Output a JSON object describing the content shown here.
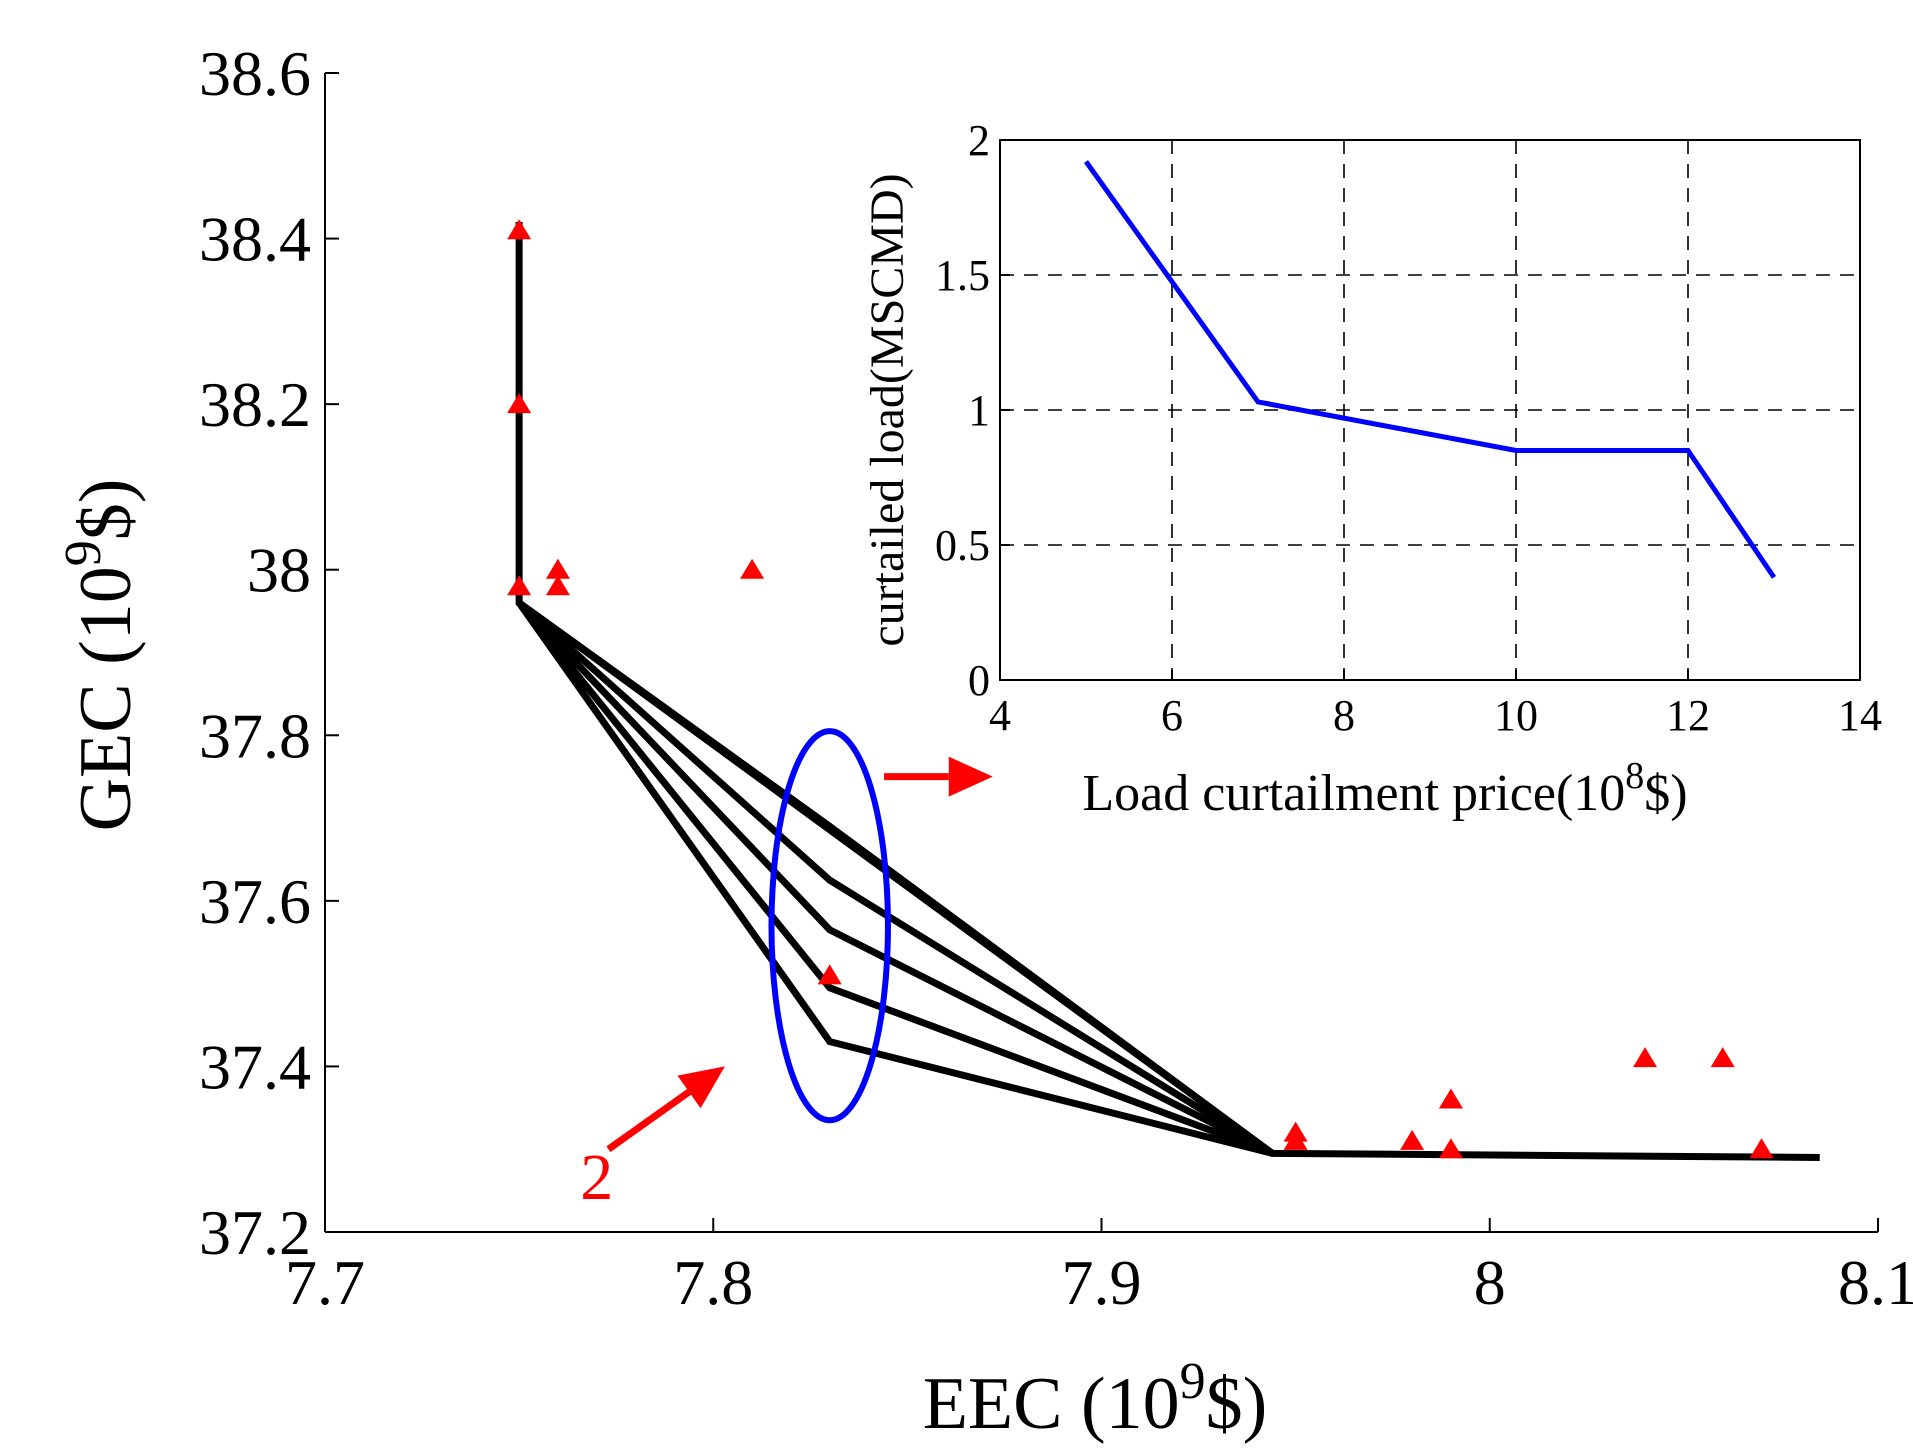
{
  "chart_data": [
    {
      "id": "main",
      "type": "line+scatter",
      "xlabel": "EEC (10",
      "xlabel_sup": "9",
      "xlabel_end": "$)",
      "ylabel": "GEC (10",
      "ylabel_sup": "9",
      "ylabel_end": "$)",
      "xlim": [
        7.7,
        8.1
      ],
      "ylim": [
        37.2,
        38.6
      ],
      "xticks": [
        "7.7",
        "7.8",
        "7.9",
        "8",
        "8.1"
      ],
      "yticks": [
        "37.2",
        "37.4",
        "37.6",
        "37.8",
        "38",
        "38.2",
        "38.4",
        "38.6"
      ],
      "grid": false,
      "fronts": [
        [
          [
            7.75,
            38.42
          ],
          [
            7.75,
            37.96
          ],
          [
            7.944,
            37.295
          ],
          [
            8.085,
            37.29
          ]
        ],
        [
          [
            7.75,
            37.96
          ],
          [
            7.83,
            37.69
          ],
          [
            7.944,
            37.295
          ]
        ],
        [
          [
            7.75,
            37.96
          ],
          [
            7.83,
            37.625
          ],
          [
            7.944,
            37.295
          ]
        ],
        [
          [
            7.75,
            37.96
          ],
          [
            7.83,
            37.565
          ],
          [
            7.944,
            37.295
          ]
        ],
        [
          [
            7.75,
            37.96
          ],
          [
            7.83,
            37.495
          ],
          [
            7.944,
            37.295
          ]
        ],
        [
          [
            7.75,
            37.96
          ],
          [
            7.83,
            37.43
          ],
          [
            7.944,
            37.295
          ]
        ]
      ],
      "points": [
        [
          7.75,
          38.41
        ],
        [
          7.75,
          38.2
        ],
        [
          7.75,
          37.98
        ],
        [
          7.76,
          38.0
        ],
        [
          7.76,
          37.98
        ],
        [
          7.81,
          38.0
        ],
        [
          7.83,
          37.51
        ],
        [
          7.95,
          37.32
        ],
        [
          7.95,
          37.31
        ],
        [
          7.98,
          37.31
        ],
        [
          7.99,
          37.36
        ],
        [
          7.99,
          37.3
        ],
        [
          8.04,
          37.41
        ],
        [
          8.06,
          37.41
        ],
        [
          8.07,
          37.3
        ]
      ],
      "line_color": "#000000",
      "point_color": "#ff0000",
      "ellipse": {
        "cx": 7.83,
        "cy": 37.57,
        "rx": 0.015,
        "ry": 0.235,
        "color": "#0000ff"
      },
      "annotation": {
        "label": "2",
        "color": "#ff0000",
        "arrow_from": [
          7.773,
          37.3
        ],
        "arrow_to": [
          7.803,
          37.4
        ],
        "label_at": [
          7.77,
          37.24
        ]
      },
      "callout_arrow": {
        "from": [
          7.844,
          37.75
        ],
        "to": [
          7.872,
          37.75
        ],
        "color": "#ff0000"
      }
    },
    {
      "id": "inset",
      "type": "line",
      "xlabel": "Load curtailment price(10",
      "xlabel_sup": "8",
      "xlabel_end": "$)",
      "ylabel": "curtailed load(MSCMD)",
      "xlim": [
        4,
        14
      ],
      "ylim": [
        0,
        2
      ],
      "xticks": [
        "4",
        "6",
        "8",
        "10",
        "12",
        "14"
      ],
      "yticks": [
        "0",
        "0.5",
        "1",
        "1.5",
        "2"
      ],
      "grid": true,
      "x": [
        5,
        7,
        10,
        12,
        13
      ],
      "y": [
        1.92,
        1.03,
        0.85,
        0.85,
        0.38
      ],
      "line_color": "#0000ff"
    }
  ]
}
